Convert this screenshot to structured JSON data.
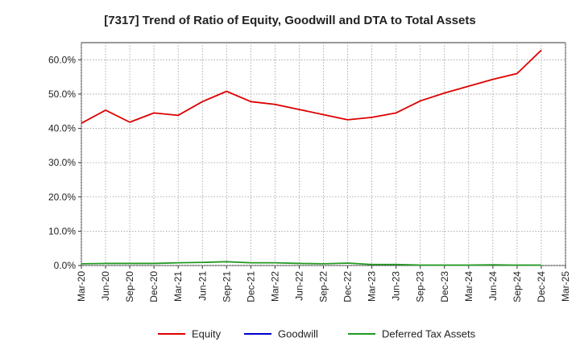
{
  "chart_data": {
    "type": "line",
    "title": "[7317]  Trend of Ratio of Equity, Goodwill and DTA to Total Assets",
    "xlabel": "",
    "ylabel": "",
    "ylim": [
      0,
      65
    ],
    "y_ticks": [
      0,
      10,
      20,
      30,
      40,
      50,
      60
    ],
    "y_tick_labels": [
      "0.0%",
      "10.0%",
      "20.0%",
      "30.0%",
      "40.0%",
      "50.0%",
      "60.0%"
    ],
    "x_tick_labels": [
      "Mar-20",
      "Jun-20",
      "Sep-20",
      "Dec-20",
      "Mar-21",
      "Jun-21",
      "Sep-21",
      "Dec-21",
      "Mar-22",
      "Jun-22",
      "Sep-22",
      "Dec-22",
      "Mar-23",
      "Jun-23",
      "Sep-23",
      "Dec-23",
      "Mar-24",
      "Jun-24",
      "Sep-24",
      "Dec-24",
      "Mar-25"
    ],
    "legend_position": "bottom",
    "grid": true,
    "series": [
      {
        "name": "Equity",
        "color": "#dd0000",
        "values": [
          41.5,
          45.3,
          41.8,
          44.5,
          43.8,
          47.8,
          50.8,
          47.8,
          47.0,
          45.5,
          44.0,
          42.5,
          43.2,
          44.5,
          48.0,
          50.3,
          52.3,
          54.3,
          56.0,
          62.8,
          null
        ]
      },
      {
        "name": "Goodwill",
        "color": "#0000cc",
        "values": [
          null,
          null,
          null,
          null,
          null,
          null,
          null,
          null,
          null,
          null,
          null,
          null,
          null,
          null,
          null,
          null,
          null,
          null,
          null,
          null,
          null
        ]
      },
      {
        "name": "Deferred Tax Assets",
        "color": "#229922",
        "values": [
          0.5,
          0.6,
          0.6,
          0.6,
          0.8,
          0.9,
          1.1,
          0.8,
          0.8,
          0.6,
          0.5,
          0.7,
          0.3,
          0.3,
          0.1,
          0.1,
          0.1,
          0.2,
          0.1,
          0.1,
          null
        ]
      }
    ]
  }
}
